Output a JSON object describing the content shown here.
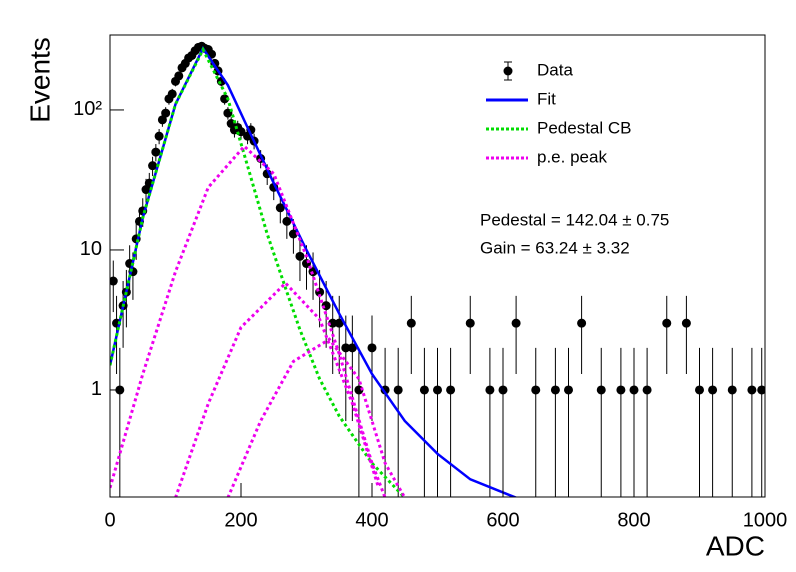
{
  "chart_data": {
    "type": "scatter",
    "x_label": "ADC",
    "y_label": "Events",
    "log_y": true,
    "xlim": [
      0,
      1000
    ],
    "ylim": [
      0.172,
      343
    ],
    "xticks": [
      0,
      200,
      400,
      600,
      800,
      1000
    ],
    "yticks": [
      1,
      10,
      {
        "value": 100,
        "label": "10²"
      }
    ],
    "legend_position": "upper-right",
    "annotations": [
      "Pedestal = 142.04 ± 0.75",
      "Gain = 63.24 ± 3.32"
    ],
    "series": [
      {
        "name": "Data",
        "type": "errorbar",
        "color": "#000000",
        "x": [
          5,
          10,
          15,
          20,
          25,
          30,
          35,
          40,
          45,
          50,
          55,
          60,
          65,
          70,
          75,
          80,
          85,
          90,
          95,
          100,
          105,
          110,
          115,
          120,
          125,
          130,
          135,
          140,
          145,
          150,
          155,
          160,
          165,
          170,
          175,
          180,
          185,
          190,
          195,
          200,
          210,
          215,
          220,
          230,
          240,
          250,
          260,
          270,
          280,
          290,
          300,
          310,
          320,
          330,
          340,
          350,
          360,
          370,
          380,
          400,
          420,
          440,
          460,
          480,
          500,
          520,
          550,
          580,
          600,
          620,
          650,
          680,
          700,
          720,
          750,
          780,
          800,
          820,
          850,
          880,
          900,
          920,
          950,
          980,
          995
        ],
        "values": [
          6,
          3,
          1,
          4,
          5,
          8,
          7,
          12,
          16,
          19,
          27,
          30,
          40,
          50,
          65,
          85,
          95,
          120,
          130,
          160,
          175,
          200,
          215,
          235,
          245,
          265,
          280,
          285,
          275,
          270,
          250,
          215,
          190,
          160,
          120,
          95,
          80,
          72,
          75,
          70,
          65,
          72,
          60,
          45,
          35,
          28,
          20,
          16,
          13,
          9,
          8,
          7,
          5,
          4,
          3,
          3,
          2,
          2,
          1,
          2,
          1,
          1,
          3,
          1,
          1,
          1,
          3,
          1,
          1,
          3,
          1,
          1,
          1,
          3,
          1,
          1,
          1,
          1,
          3,
          3,
          1,
          1,
          1,
          1,
          1
        ],
        "errors": [
          2.4,
          1.7,
          1,
          2,
          2.2,
          2.8,
          2.6,
          3.5,
          4,
          4.4,
          5.2,
          5.5,
          6.3,
          7.1,
          8.1,
          9.2,
          9.7,
          11,
          11.4,
          12.6,
          13.2,
          14.1,
          14.7,
          15.3,
          15.7,
          16.3,
          16.7,
          16.9,
          16.6,
          16.4,
          15.8,
          14.7,
          13.8,
          12.6,
          11,
          9.7,
          8.9,
          8.5,
          8.7,
          8.4,
          8.1,
          8.5,
          7.7,
          6.7,
          5.9,
          5.3,
          4.5,
          4,
          3.6,
          3,
          2.8,
          2.6,
          2.2,
          2,
          1.7,
          1.7,
          1.4,
          1.4,
          1,
          1.4,
          1,
          1,
          1.7,
          1,
          1,
          1,
          1.7,
          1,
          1,
          1.7,
          1,
          1,
          1,
          1.7,
          1,
          1,
          1,
          1,
          1.7,
          1.7,
          1,
          1,
          1,
          1,
          1
        ]
      },
      {
        "name": "Fit",
        "type": "line",
        "color": "#0000ff",
        "line_style": "solid",
        "x": [
          0,
          50,
          100,
          142,
          180,
          210,
          250,
          300,
          350,
          400,
          450,
          500,
          550,
          620
        ],
        "values": [
          1.5,
          17,
          110,
          275,
          150,
          75,
          30,
          10,
          3.5,
          1.3,
          0.6,
          0.35,
          0.23,
          0.17
        ]
      },
      {
        "name": "Pedestal CB",
        "type": "line",
        "color": "#00dd00",
        "line_style": "dashed",
        "x": [
          0,
          50,
          100,
          142,
          180,
          210,
          240,
          270,
          290,
          320,
          350,
          400,
          450
        ],
        "values": [
          1.5,
          17,
          110,
          270,
          120,
          40,
          13,
          5,
          2.7,
          1.2,
          0.65,
          0.3,
          0.17
        ]
      },
      {
        "name": "p.e. peak",
        "type": "line",
        "color": "#ee00ee",
        "line_style": "dashed",
        "x": [
          0,
          50,
          100,
          150,
          205,
          250,
          300,
          350,
          400,
          420,
          null,
          100,
          150,
          200,
          268,
          320,
          370,
          410,
          null,
          180,
          230,
          280,
          335,
          380,
          420,
          450
        ],
        "values": [
          0.2,
          1.3,
          7,
          28,
          55,
          35,
          9,
          1.8,
          0.3,
          0.17,
          null,
          0.17,
          0.8,
          2.8,
          5.8,
          3.2,
          0.8,
          0.2,
          null,
          0.17,
          0.6,
          1.6,
          2.3,
          1.2,
          0.3,
          0.17
        ]
      }
    ]
  }
}
